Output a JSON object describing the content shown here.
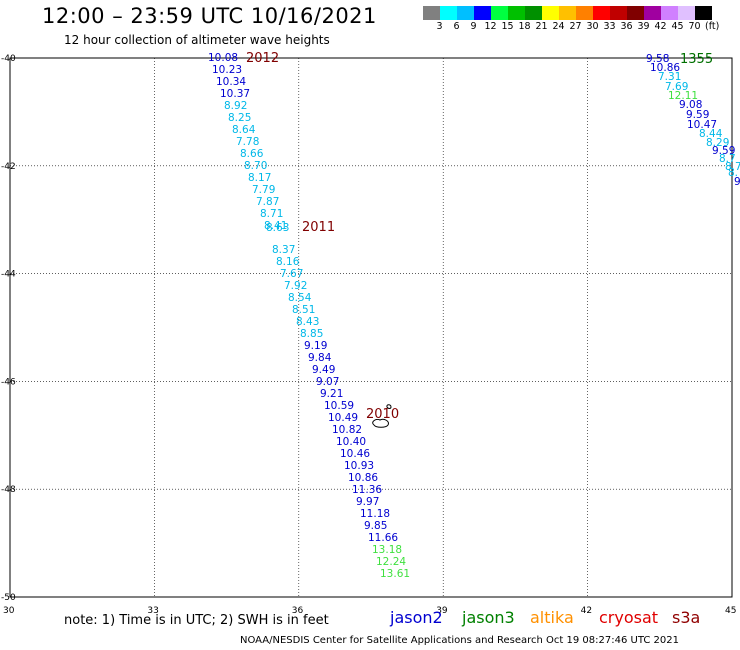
{
  "title": "12:00 – 23:59 UTC 10/16/2021",
  "subtitle": "12 hour collection of altimeter wave heights",
  "scale": {
    "swatches": [
      "#808080",
      "#00ffff",
      "#00bfff",
      "#0000ff",
      "#00ff40",
      "#00c000",
      "#009000",
      "#ffff00",
      "#ffc000",
      "#ff8000",
      "#ff0000",
      "#c00000",
      "#800000",
      "#a000a0",
      "#d080ff",
      "#e0c0ff",
      "#000000"
    ],
    "labels": [
      "3",
      "6",
      "9",
      "12",
      "15",
      "18",
      "21",
      "24",
      "27",
      "30",
      "33",
      "36",
      "39",
      "42",
      "45",
      "70"
    ],
    "unit": "(ft)"
  },
  "axes": {
    "lon_labels": [
      "30",
      "33",
      "36",
      "39",
      "42",
      "45"
    ],
    "lat_labels": [
      "-40",
      "-42",
      "-44",
      "-46",
      "-48",
      "-50"
    ]
  },
  "colors": {
    "cyan": "#00b8e8",
    "blue": "#0000d0",
    "green": "#40e040",
    "label": "#800000",
    "label_green": "#007000"
  },
  "track1": {
    "values": [
      {
        "v": "10.08",
        "c": "blue"
      },
      {
        "v": "10.23",
        "c": "blue"
      },
      {
        "v": "10.34",
        "c": "blue"
      },
      {
        "v": "10.37",
        "c": "blue"
      },
      {
        "v": "8.92",
        "c": "cyan"
      },
      {
        "v": "8.25",
        "c": "cyan"
      },
      {
        "v": "8.64",
        "c": "cyan"
      },
      {
        "v": "7.78",
        "c": "cyan"
      },
      {
        "v": "8.66",
        "c": "cyan"
      },
      {
        "v": "8.70",
        "c": "cyan"
      },
      {
        "v": "8.17",
        "c": "cyan"
      },
      {
        "v": "7.79",
        "c": "cyan"
      },
      {
        "v": "7.87",
        "c": "cyan"
      },
      {
        "v": "8.71",
        "c": "cyan"
      },
      {
        "v": "8.41",
        "c": "cyan"
      },
      {
        "v": "8.63",
        "c": "cyan"
      },
      {
        "v": "8.37",
        "c": "cyan"
      },
      {
        "v": "8.16",
        "c": "cyan"
      },
      {
        "v": "7.67",
        "c": "cyan"
      },
      {
        "v": "7.92",
        "c": "cyan"
      },
      {
        "v": "8.54",
        "c": "cyan"
      },
      {
        "v": "8.51",
        "c": "cyan"
      },
      {
        "v": "8.43",
        "c": "cyan"
      },
      {
        "v": "8.85",
        "c": "cyan"
      },
      {
        "v": "9.19",
        "c": "blue"
      },
      {
        "v": "9.84",
        "c": "blue"
      },
      {
        "v": "9.49",
        "c": "blue"
      },
      {
        "v": "9.07",
        "c": "blue"
      },
      {
        "v": "9.21",
        "c": "blue"
      },
      {
        "v": "10.59",
        "c": "blue"
      },
      {
        "v": "10.49",
        "c": "blue"
      },
      {
        "v": "10.82",
        "c": "blue"
      },
      {
        "v": "10.40",
        "c": "blue"
      },
      {
        "v": "10.46",
        "c": "blue"
      },
      {
        "v": "10.93",
        "c": "blue"
      },
      {
        "v": "10.86",
        "c": "blue"
      },
      {
        "v": "11.36",
        "c": "blue"
      },
      {
        "v": "9.97",
        "c": "blue"
      },
      {
        "v": "11.18",
        "c": "blue"
      },
      {
        "v": "9.85",
        "c": "blue"
      },
      {
        "v": "11.66",
        "c": "blue"
      },
      {
        "v": "13.18",
        "c": "green"
      },
      {
        "v": "12.24",
        "c": "green"
      },
      {
        "v": "13.61",
        "c": "green"
      }
    ],
    "time_labels": [
      "2012",
      "2011",
      "2010"
    ]
  },
  "track2": {
    "values": [
      {
        "v": "9.58",
        "c": "blue"
      },
      {
        "v": "10.86",
        "c": "blue"
      },
      {
        "v": "7.31",
        "c": "cyan"
      },
      {
        "v": "7.69",
        "c": "cyan"
      },
      {
        "v": "12.11",
        "c": "green"
      },
      {
        "v": "9.08",
        "c": "blue"
      },
      {
        "v": "9.59",
        "c": "blue"
      },
      {
        "v": "10.47",
        "c": "blue"
      },
      {
        "v": "8.44",
        "c": "cyan"
      },
      {
        "v": "8.29",
        "c": "cyan"
      },
      {
        "v": "9.59",
        "c": "blue"
      },
      {
        "v": "8.7",
        "c": "cyan"
      },
      {
        "v": "8.7",
        "c": "cyan"
      },
      {
        "v": "8.",
        "c": "cyan"
      },
      {
        "v": "9",
        "c": "blue"
      }
    ],
    "time_label": "1355"
  },
  "note": "note: 1) Time is in UTC; 2) SWH is in feet",
  "satellites": [
    {
      "name": "jason2",
      "color": "#0000d0"
    },
    {
      "name": "jason3",
      "color": "#008000"
    },
    {
      "name": "altika",
      "color": "#ff9000"
    },
    {
      "name": "cryosat",
      "color": "#e00000"
    },
    {
      "name": "s3a",
      "color": "#900000"
    }
  ],
  "footer": "NOAA/NESDIS Center for Satellite Applications and Research    Oct 19 08:27:46 UTC 2021"
}
